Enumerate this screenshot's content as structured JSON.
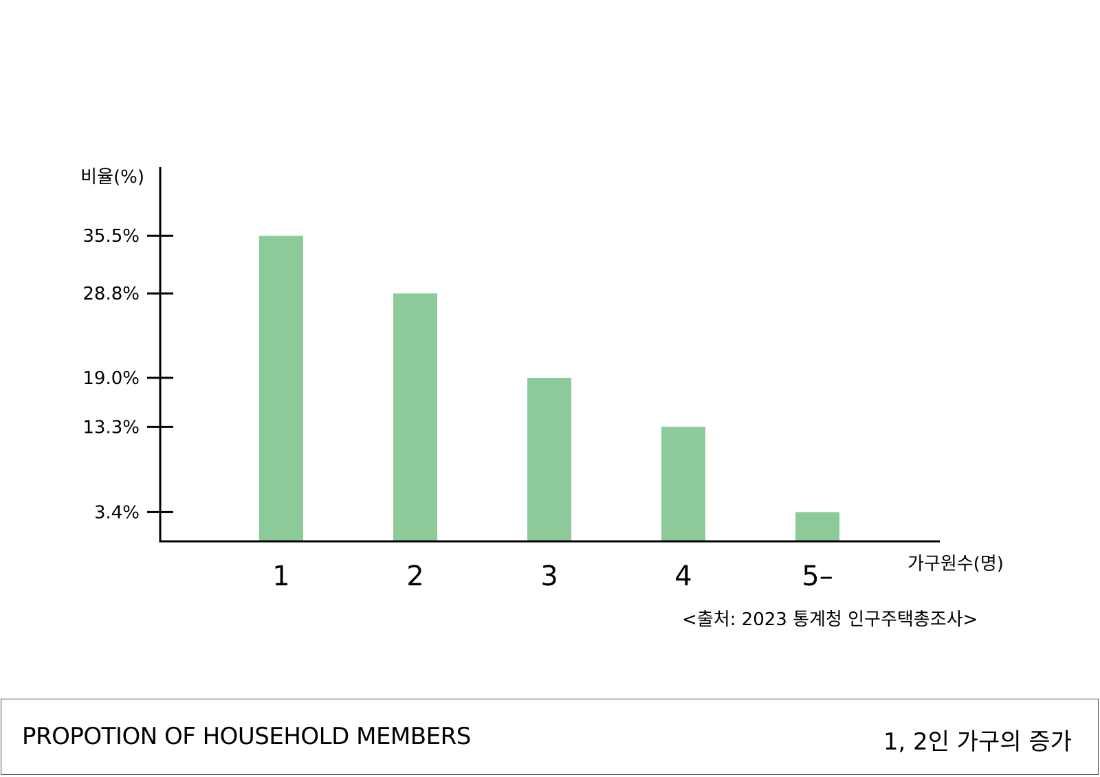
{
  "chart_data": {
    "type": "bar",
    "ylabel": "비율(%)",
    "xlabel": "가구원수(명)",
    "categories": [
      "1",
      "2",
      "3",
      "4",
      "5-"
    ],
    "values": [
      35.5,
      28.8,
      19.0,
      13.3,
      3.4
    ],
    "yticks": [
      35.5,
      28.8,
      19.0,
      13.3,
      3.4
    ],
    "ytick_labels": [
      "35.5%",
      "28.8%",
      "19.0%",
      "13.3%",
      "3.4%"
    ],
    "ylim": [
      0,
      43.5
    ],
    "grid": false,
    "bar_color": "#8ccb99",
    "source_note": "<출처: 2023 통계청 인구주택총조사>"
  },
  "footer": {
    "title": "PROPOTION OF HOUSEHOLD MEMBERS",
    "note": "1, 2인 가구의 증가"
  }
}
